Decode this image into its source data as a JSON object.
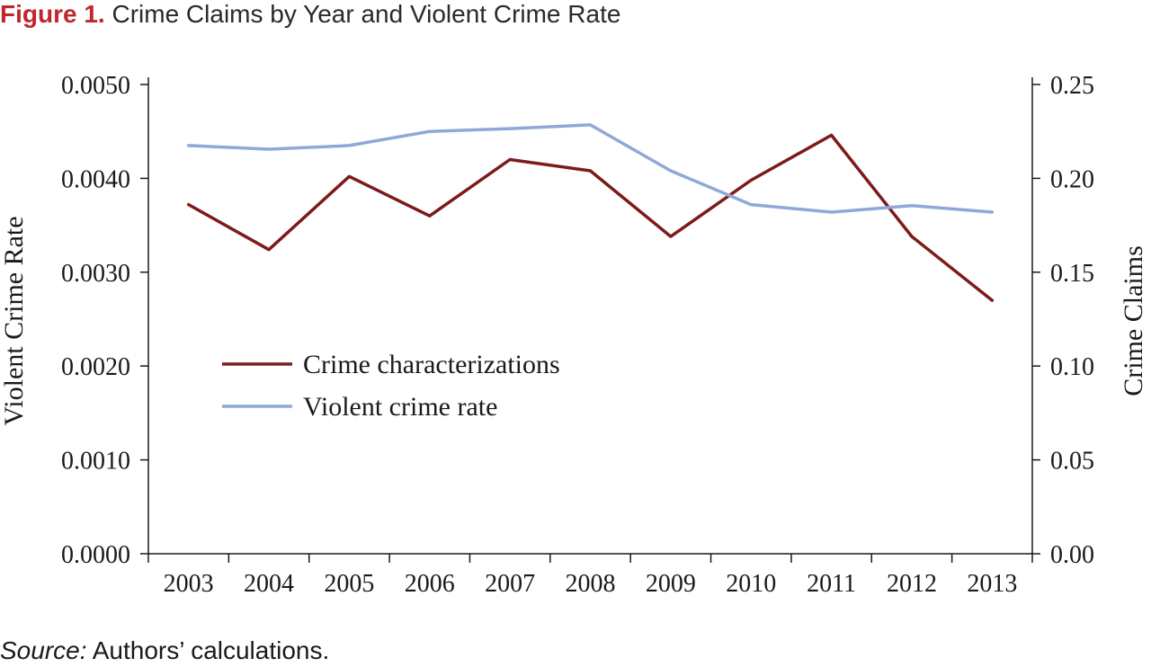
{
  "figure": {
    "label": "Figure 1.",
    "title": "Crime Claims by Year and Violent Crime Rate",
    "source_label": "Source:",
    "source_text": " Authors’ calculations."
  },
  "chart_data": {
    "type": "line",
    "categories": [
      "2003",
      "2004",
      "2005",
      "2006",
      "2007",
      "2008",
      "2009",
      "2010",
      "2011",
      "2012",
      "2013"
    ],
    "left_axis": {
      "label": "Violent Crime Rate",
      "ylim": [
        0,
        0.005
      ],
      "ticks": [
        "0.0000",
        "0.0010",
        "0.0020",
        "0.0030",
        "0.0040",
        "0.0050"
      ]
    },
    "right_axis": {
      "label": "Crime Claims",
      "ylim": [
        0,
        0.25
      ],
      "ticks": [
        "0.00",
        "0.05",
        "0.10",
        "0.15",
        "0.20",
        "0.25"
      ]
    },
    "series": [
      {
        "name": "Crime characterizations",
        "axis": "right",
        "color": "#7d1a1a",
        "values": [
          0.186,
          0.162,
          0.201,
          0.18,
          0.21,
          0.204,
          0.169,
          0.199,
          0.223,
          0.169,
          0.135
        ]
      },
      {
        "name": "Violent crime rate",
        "axis": "left",
        "color": "#8fa8d8",
        "values": [
          0.00435,
          0.00431,
          0.00435,
          0.0045,
          0.00453,
          0.00457,
          0.00408,
          0.00372,
          0.00364,
          0.00371,
          0.00364
        ]
      }
    ],
    "legend_position": "center-left",
    "grid": false
  }
}
